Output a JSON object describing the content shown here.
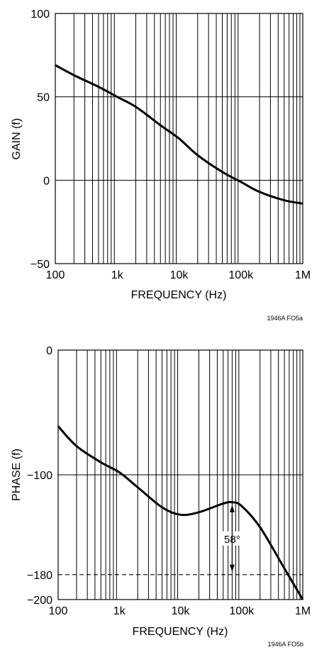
{
  "chart_data": [
    {
      "type": "line",
      "title": "",
      "xlabel": "FREQUENCY (Hz)",
      "ylabel": "GAIN (f)",
      "xscale": "log",
      "xlim": [
        100,
        1000000
      ],
      "ylim": [
        -50,
        100
      ],
      "x_tick_labels": [
        "100",
        "1k",
        "10k",
        "100k",
        "1M"
      ],
      "y_tick_labels": [
        "100",
        "50",
        "0",
        "−50"
      ],
      "y_tick_values": [
        100,
        50,
        0,
        -50
      ],
      "grid": true,
      "series": [
        {
          "x": [
            100,
            200,
            500,
            1000,
            2000,
            5000,
            10000,
            20000,
            50000,
            100000,
            200000,
            500000,
            1000000
          ],
          "y": [
            69,
            63,
            56,
            50,
            44,
            33,
            25,
            15,
            5,
            -1,
            -7,
            -12,
            -14
          ]
        }
      ],
      "figure_code": "1946A FO5a"
    },
    {
      "type": "line",
      "title": "",
      "xlabel": "FREQUENCY (Hz)",
      "ylabel": "PHASE (f)",
      "xscale": "log",
      "xlim": [
        100,
        1000000
      ],
      "ylim": [
        -200,
        0
      ],
      "x_tick_labels": [
        "100",
        "1k",
        "10k",
        "100k",
        "1M"
      ],
      "y_tick_labels": [
        "0",
        "−100",
        "−180",
        "−200"
      ],
      "y_tick_values": [
        0,
        -100,
        -180,
        -200
      ],
      "grid": true,
      "reference_line": {
        "y": -180,
        "style": "dashed"
      },
      "annotation": {
        "label": "58°",
        "x": 70000,
        "y_from": -122,
        "y_to": -180
      },
      "series": [
        {
          "x": [
            100,
            200,
            500,
            1000,
            2000,
            5000,
            10000,
            20000,
            50000,
            70000,
            100000,
            200000,
            500000,
            1000000
          ],
          "y": [
            -61,
            -77,
            -90,
            -98,
            -110,
            -126,
            -132,
            -130,
            -123,
            -122,
            -125,
            -142,
            -175,
            -200
          ]
        }
      ],
      "figure_code": "1946A FO5b"
    }
  ]
}
